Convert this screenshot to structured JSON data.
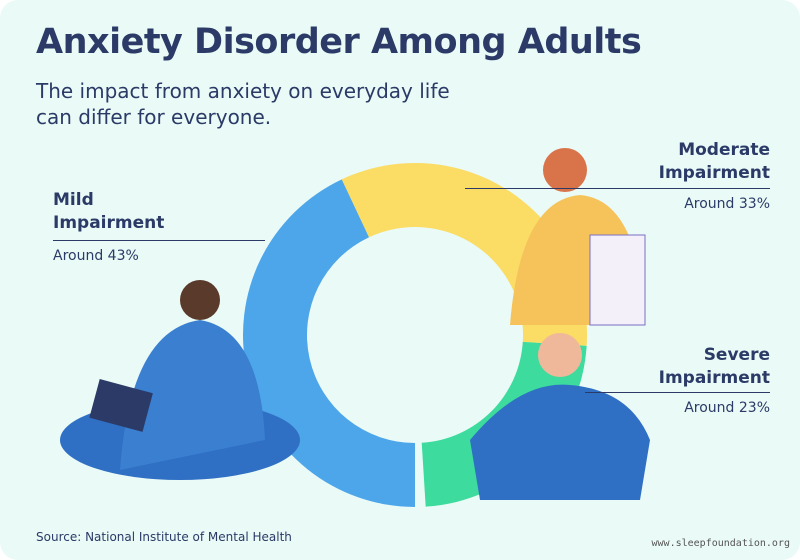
{
  "title": "Anxiety Disorder Among Adults",
  "subtitle": "The impact from anxiety on everyday life can differ for everyone.",
  "source": "Source: National Institute of Mental Health",
  "watermark": "www.sleepfoundation.org",
  "chart_data": {
    "type": "donut",
    "categories": [
      "Mild Impairment",
      "Moderate Impairment",
      "Severe Impairment"
    ],
    "values": [
      43,
      33,
      23
    ],
    "value_labels": [
      "Around 43%",
      "Around 33%",
      "Around 23%"
    ],
    "colors": [
      "#4ea6ea",
      "#fbdc64",
      "#3ddb9d"
    ]
  }
}
